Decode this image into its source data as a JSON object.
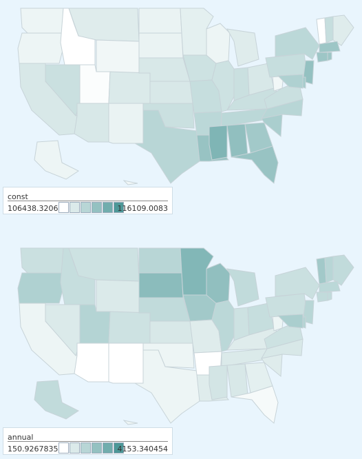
{
  "maps": [
    {
      "id": "const",
      "legend": {
        "title": "const",
        "min": "106438.3206",
        "max": "116109.0083"
      },
      "state_shade": {
        "WA": 0.1,
        "OR": 0.1,
        "CA": 0.22,
        "NV": 0.3,
        "ID": 0.0,
        "MT": 0.18,
        "WY": 0.08,
        "UT": 0.02,
        "AZ": 0.22,
        "CO": 0.2,
        "NM": 0.12,
        "ND": 0.12,
        "SD": 0.12,
        "NE": 0.22,
        "KS": 0.22,
        "OK": 0.3,
        "TX": 0.4,
        "MN": 0.15,
        "IA": 0.28,
        "MO": 0.32,
        "AR": 0.38,
        "LA": 0.58,
        "WI": 0.1,
        "IL": 0.28,
        "MI": 0.18,
        "IN": 0.3,
        "OH": 0.22,
        "KY": 0.3,
        "TN": 0.38,
        "MS": 0.72,
        "AL": 0.62,
        "GA": 0.52,
        "FL": 0.58,
        "SC": 0.48,
        "NC": 0.4,
        "VA": 0.3,
        "WV": 0.08,
        "PA": 0.32,
        "NY": 0.38,
        "VT": 0.0,
        "NH": 0.32,
        "ME": 0.18,
        "MA": 0.55,
        "CT": 0.55,
        "RI": 0.55,
        "NJ": 0.6,
        "DE": 0.5,
        "MD": 0.45,
        "AK": 0.1,
        "HI": 0.08
      }
    },
    {
      "id": "annual",
      "legend": {
        "title": "annual",
        "min": "150.9267835",
        "max": "4153.340454"
      },
      "state_shade": {
        "WA": 0.3,
        "OR": 0.45,
        "CA": 0.1,
        "NV": 0.2,
        "ID": 0.32,
        "MT": 0.28,
        "WY": 0.2,
        "UT": 0.42,
        "AZ": 0.0,
        "CO": 0.28,
        "NM": 0.0,
        "ND": 0.4,
        "SD": 0.65,
        "NE": 0.35,
        "KS": 0.22,
        "OK": 0.1,
        "TX": 0.1,
        "MN": 0.7,
        "IA": 0.52,
        "MO": 0.18,
        "AR": 0.0,
        "LA": 0.18,
        "WI": 0.62,
        "IL": 0.38,
        "MI": 0.35,
        "IN": 0.28,
        "OH": 0.32,
        "KY": 0.18,
        "TN": 0.2,
        "MS": 0.25,
        "AL": 0.22,
        "GA": 0.15,
        "FL": 0.05,
        "SC": 0.18,
        "NC": 0.22,
        "VA": 0.28,
        "WV": 0.1,
        "PA": 0.3,
        "NY": 0.3,
        "VT": 0.52,
        "NH": 0.4,
        "ME": 0.35,
        "MA": 0.38,
        "CT": 0.35,
        "RI": 0.35,
        "NJ": 0.4,
        "DE": 0.42,
        "MD": 0.48,
        "AK": 0.35,
        "HI": 0.1
      }
    }
  ],
  "palette": {
    "low": "#ffffff",
    "high": "#4d9898",
    "border": "#c7d3d8"
  }
}
